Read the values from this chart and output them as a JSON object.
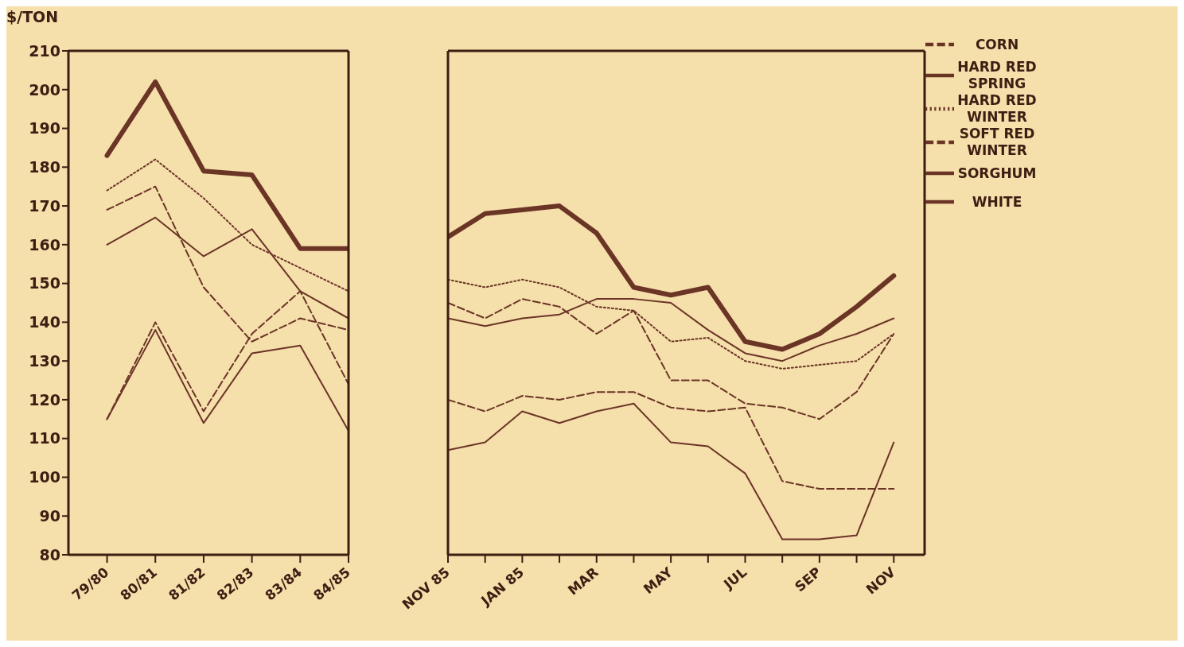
{
  "chart_data": [
    {
      "type": "line",
      "ylabel": "$/TON",
      "categories": [
        "79/80",
        "80/81",
        "81/82",
        "82/83",
        "83/84",
        "84/85"
      ],
      "ylim": [
        80,
        210
      ],
      "yticks": [
        80,
        90,
        100,
        110,
        120,
        130,
        140,
        150,
        160,
        170,
        180,
        190,
        200,
        210
      ],
      "grid": false,
      "legend": false,
      "marker": "none",
      "series": [
        {
          "color": "#6b3526",
          "line_style": "solid",
          "values": [
            183,
            202,
            179,
            178,
            159,
            159
          ]
        },
        {
          "color": "#6b3526",
          "line_style": "dotted",
          "values": [
            174,
            182,
            172,
            160,
            154,
            148
          ]
        },
        {
          "color": "#6b3526",
          "line_style": "solid",
          "values": [
            160,
            167,
            157,
            164,
            148,
            141
          ]
        },
        {
          "color": "#6b3526",
          "line_style": "dashed",
          "values": [
            169,
            175,
            149,
            135,
            141,
            138
          ]
        },
        {
          "color": "#6b3526",
          "line_style": "solid",
          "values": [
            115,
            138,
            114,
            132,
            134,
            112
          ]
        },
        {
          "color": "#6b3526",
          "line_style": "dashed",
          "values": [
            115,
            140,
            117,
            137,
            148,
            124
          ]
        }
      ]
    },
    {
      "type": "line",
      "categories": [
        "NOV 85",
        null,
        "JAN 85",
        null,
        "MAR",
        null,
        "MAY",
        null,
        "JUL",
        null,
        "SEP",
        null,
        "NOV"
      ],
      "ylim": [
        80,
        210
      ],
      "yticks": [
        80,
        90,
        100,
        110,
        120,
        130,
        140,
        150,
        160,
        170,
        180,
        190,
        200,
        210
      ],
      "tick_labels": "x",
      "grid": false,
      "legend": "right",
      "marker": "none",
      "series": [
        {
          "name": "HARD RED SPRING",
          "color": "#6b3526",
          "line_style": "solid",
          "values": [
            162,
            168,
            169,
            170,
            163,
            149,
            147,
            149,
            135,
            133,
            137,
            144,
            152
          ]
        },
        {
          "name": "HARD RED WINTER",
          "color": "#6b3526",
          "line_style": "dotted",
          "values": [
            151,
            149,
            151,
            149,
            144,
            143,
            135,
            136,
            130,
            128,
            129,
            130,
            137
          ]
        },
        {
          "name": "WHITE",
          "color": "#6b3526",
          "line_style": "solid",
          "values": [
            141,
            139,
            141,
            142,
            146,
            146,
            145,
            138,
            132,
            130,
            134,
            137,
            141
          ]
        },
        {
          "name": "SOFT RED WINTER",
          "color": "#6b3526",
          "line_style": "dashed",
          "values": [
            145,
            141,
            146,
            144,
            137,
            143,
            125,
            125,
            119,
            118,
            115,
            122,
            137
          ]
        },
        {
          "name": "SORGHUM",
          "color": "#6b3526",
          "line_style": "solid",
          "values": [
            107,
            109,
            117,
            114,
            117,
            119,
            109,
            108,
            101,
            84,
            84,
            85,
            109
          ]
        },
        {
          "name": "CORN",
          "color": "#6b3526",
          "line_style": "dashed",
          "values": [
            120,
            117,
            121,
            120,
            122,
            122,
            118,
            117,
            118,
            99,
            97,
            97,
            97
          ]
        }
      ]
    }
  ]
}
